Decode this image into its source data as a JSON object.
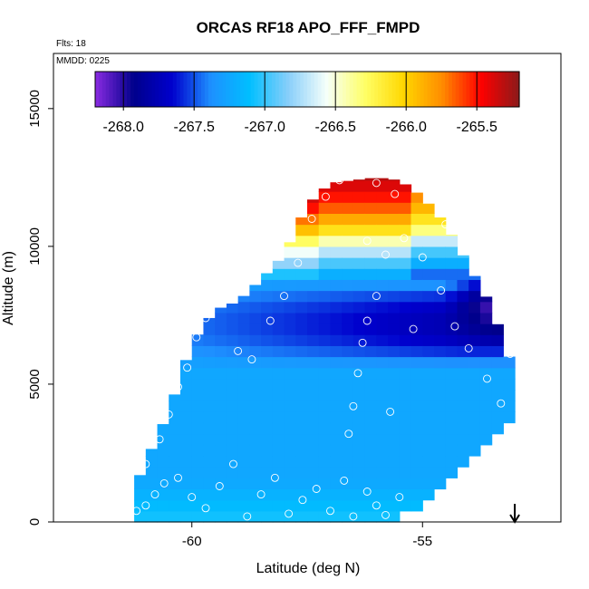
{
  "chart_data": {
    "type": "heatmap",
    "title": "ORCAS RF18 APO_FFF_FMPD",
    "flights_label": "Flts: 18",
    "date_label": "MMDD: 0225",
    "xlabel": "Latitude (deg N)",
    "ylabel": "Altitude (m)",
    "xlim": [
      -63,
      -52
    ],
    "ylim": [
      0,
      17000
    ],
    "xticks": [
      {
        "value": -60,
        "label": "-60"
      },
      {
        "value": -55,
        "label": "-55"
      }
    ],
    "yticks": [
      {
        "value": 0,
        "label": "0"
      },
      {
        "value": 5000,
        "label": "5000"
      },
      {
        "value": 10000,
        "label": "10000"
      },
      {
        "value": 15000,
        "label": "15000"
      }
    ],
    "colorbar": {
      "range": [
        -268.2,
        -265.2
      ],
      "ticks": [
        {
          "value": -268.0,
          "label": "-268.0"
        },
        {
          "value": -267.5,
          "label": "-267.5"
        },
        {
          "value": -267.0,
          "label": "-267.0"
        },
        {
          "value": -266.5,
          "label": "-266.5"
        },
        {
          "value": -266.0,
          "label": "-266.0"
        },
        {
          "value": -265.5,
          "label": "-265.5"
        }
      ],
      "colors": [
        "#8a2be2",
        "#00008b",
        "#0000cd",
        "#1e90ff",
        "#00bfff",
        "#87cefa",
        "#f5fffa",
        "#ffff66",
        "#ffd700",
        "#ff8c00",
        "#ff0000",
        "#8b1a1a"
      ]
    },
    "arrow_marker": {
      "latitude": -53.0,
      "direction": "down"
    },
    "envelope": [
      [
        -61.3,
        0,
        1000
      ],
      [
        -61.0,
        0,
        2200
      ],
      [
        -60.5,
        0,
        4000
      ],
      [
        -60.0,
        0,
        6500
      ],
      [
        -59.5,
        0,
        7700
      ],
      [
        -59.0,
        0,
        8000
      ],
      [
        -58.5,
        0,
        8800
      ],
      [
        -58.0,
        0,
        9700
      ],
      [
        -57.5,
        0,
        11500
      ],
      [
        -57.0,
        0,
        12300
      ],
      [
        -56.5,
        0,
        12400
      ],
      [
        -56.0,
        0,
        12500
      ],
      [
        -55.5,
        300,
        12400
      ],
      [
        -55.0,
        900,
        11800
      ],
      [
        -54.5,
        1400,
        10800
      ],
      [
        -54.0,
        2300,
        9300
      ],
      [
        -53.5,
        3000,
        7800
      ],
      [
        -53.2,
        3600,
        6300
      ],
      [
        -53.0,
        4200,
        5500
      ]
    ],
    "field": {
      "base": -267.25,
      "surface_value": -267.05,
      "surface_depth_m": 1500,
      "blue_core": {
        "value": -267.8,
        "center_alt_m": 7200,
        "half_thickness_m": 1600
      },
      "deep_core": {
        "value": -268.1,
        "lat_min": -54.5,
        "alt_min_m": 6300,
        "alt_max_m": 9500
      },
      "upper_gradient": [
        [
          9000,
          -267.2
        ],
        [
          10000,
          -266.6
        ],
        [
          10700,
          -266.0
        ],
        [
          11500,
          -265.6
        ],
        [
          12500,
          -265.3
        ]
      ]
    },
    "sample_points": [
      [
        -61.2,
        400
      ],
      [
        -61.0,
        600
      ],
      [
        -60.8,
        1000
      ],
      [
        -60.6,
        1400
      ],
      [
        -60.3,
        1600
      ],
      [
        -60.0,
        900
      ],
      [
        -59.7,
        500
      ],
      [
        -59.4,
        1300
      ],
      [
        -59.1,
        2100
      ],
      [
        -58.8,
        200
      ],
      [
        -58.5,
        1000
      ],
      [
        -58.2,
        1600
      ],
      [
        -57.9,
        300
      ],
      [
        -57.6,
        800
      ],
      [
        -57.3,
        1200
      ],
      [
        -57.0,
        400
      ],
      [
        -56.7,
        1500
      ],
      [
        -56.5,
        200
      ],
      [
        -56.2,
        1100
      ],
      [
        -56.0,
        600
      ],
      [
        -55.8,
        250
      ],
      [
        -55.5,
        900
      ],
      [
        -61.0,
        2100
      ],
      [
        -60.7,
        3000
      ],
      [
        -60.5,
        3900
      ],
      [
        -60.3,
        4900
      ],
      [
        -60.1,
        5600
      ],
      [
        -59.9,
        6700
      ],
      [
        -59.7,
        7400
      ],
      [
        -59.4,
        8000
      ],
      [
        -59.0,
        6200
      ],
      [
        -58.7,
        5900
      ],
      [
        -58.3,
        7300
      ],
      [
        -58.0,
        8200
      ],
      [
        -57.7,
        9400
      ],
      [
        -57.4,
        11000
      ],
      [
        -57.1,
        11800
      ],
      [
        -56.8,
        12400
      ],
      [
        -56.4,
        12600
      ],
      [
        -56.0,
        12300
      ],
      [
        -55.6,
        11900
      ],
      [
        -56.6,
        3200
      ],
      [
        -56.5,
        4200
      ],
      [
        -56.4,
        5400
      ],
      [
        -56.3,
        6500
      ],
      [
        -56.2,
        7300
      ],
      [
        -56.0,
        8200
      ],
      [
        -55.8,
        9700
      ],
      [
        -55.4,
        10300
      ],
      [
        -55.0,
        9600
      ],
      [
        -54.6,
        8400
      ],
      [
        -54.3,
        7100
      ],
      [
        -54.0,
        6300
      ],
      [
        -54.5,
        10800
      ],
      [
        -53.6,
        5200
      ],
      [
        -53.3,
        4300
      ],
      [
        -53.1,
        6100
      ],
      [
        -55.7,
        4000
      ],
      [
        -55.2,
        7000
      ],
      [
        -56.2,
        10200
      ]
    ]
  }
}
